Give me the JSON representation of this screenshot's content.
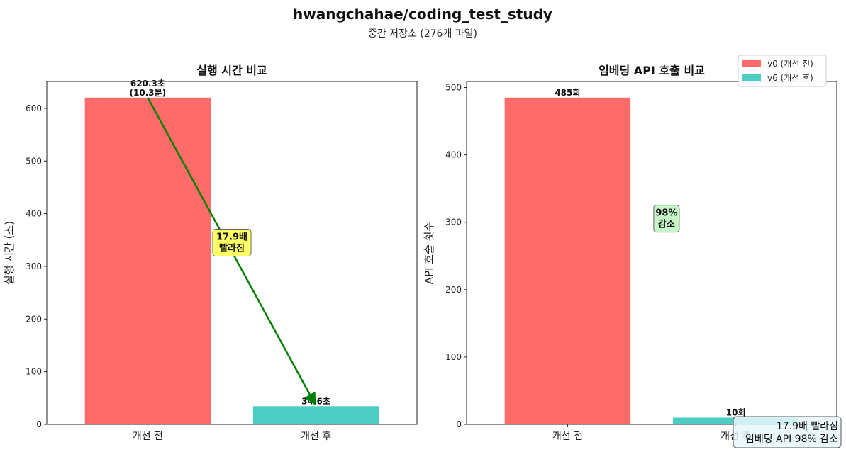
{
  "title": "hwangchahae/coding_test_study",
  "subtitle": "중간 저장소 (276개 파일)",
  "legend": [
    {
      "label": "v0 (개선 전)",
      "color": "#ff6b6b"
    },
    {
      "label": "v6 (개선 후)",
      "color": "#4ecdc4"
    }
  ],
  "summary": [
    "17.9배 빨라짐",
    "임베딩 API 98% 감소"
  ],
  "chart_data": [
    {
      "type": "bar",
      "title": "실행 시간 비교",
      "ylabel": "실행 시간 (초)",
      "categories": [
        "개선 전",
        "개선 후"
      ],
      "values": [
        620.3,
        34.6
      ],
      "value_labels": [
        [
          "620.3초",
          "(10.3분)"
        ],
        [
          "34.6초"
        ]
      ],
      "colors": [
        "#ff6b6b",
        "#4ecdc4"
      ],
      "ylim": [
        0,
        651
      ],
      "yticks": [
        0,
        100,
        200,
        300,
        400,
        500,
        600
      ],
      "annotation": {
        "lines": [
          "17.9배",
          "빨라짐"
        ],
        "box_color": "#ffff66"
      },
      "arrow": {
        "from": [
          0,
          620.3
        ],
        "to": [
          1,
          34.6
        ],
        "color": "#008000"
      }
    },
    {
      "type": "bar",
      "title": "임베딩 API 호출 비교",
      "ylabel": "API 호출 횟수",
      "categories": [
        "개선 전",
        "개선 후"
      ],
      "values": [
        485,
        10
      ],
      "value_labels": [
        [
          "485회"
        ],
        [
          "10회"
        ]
      ],
      "colors": [
        "#ff6b6b",
        "#4ecdc4"
      ],
      "ylim": [
        0,
        509
      ],
      "yticks": [
        0,
        100,
        200,
        300,
        400,
        500
      ],
      "annotation": {
        "lines": [
          "98%",
          "감소"
        ],
        "box_color": "#c6f5c6"
      }
    }
  ]
}
